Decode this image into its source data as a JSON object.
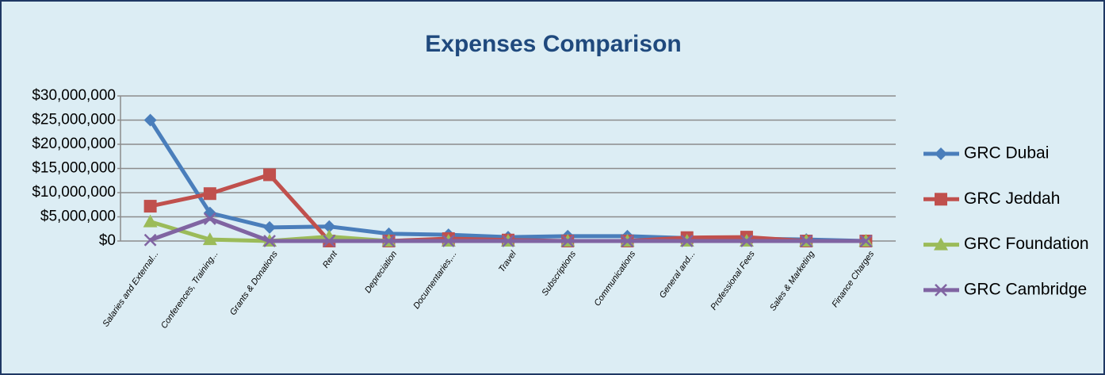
{
  "chart_data": {
    "type": "line",
    "title": "Expenses Comparison",
    "categories": [
      "Salaries and External...",
      "Conferences, Training...",
      "Grants & Donations",
      "Rent",
      "Depreciation",
      "Documentaries,...",
      "Travel",
      "Subscriptions",
      "Communications",
      "General and...",
      "Professional Fees",
      "Sales & Marketing",
      "Finance Charges"
    ],
    "series": [
      {
        "name": "GRC Dubai",
        "color": "#4a7ebb",
        "marker": "diamond",
        "values": [
          25000000,
          5800000,
          2800000,
          3000000,
          1500000,
          1300000,
          800000,
          1000000,
          1000000,
          600000,
          500000,
          300000,
          0
        ]
      },
      {
        "name": "GRC Jeddah",
        "color": "#c0504d",
        "marker": "square",
        "values": [
          7200000,
          9800000,
          13700000,
          0,
          0,
          500000,
          200000,
          0,
          0,
          700000,
          800000,
          0,
          0
        ]
      },
      {
        "name": "GRC Foundation",
        "color": "#9bbb59",
        "marker": "triangle",
        "values": [
          4000000,
          300000,
          0,
          900000,
          0,
          0,
          0,
          0,
          0,
          0,
          0,
          0,
          0
        ]
      },
      {
        "name": "GRC Cambridge",
        "color": "#8064a2",
        "marker": "x",
        "values": [
          200000,
          4600000,
          0,
          0,
          0,
          0,
          0,
          0,
          0,
          0,
          0,
          0,
          0
        ]
      }
    ],
    "ylim": [
      0,
      30000000
    ],
    "yticks": [
      {
        "value": 0,
        "label": "$0"
      },
      {
        "value": 5000000,
        "label": "$5,000,000"
      },
      {
        "value": 10000000,
        "label": "$10,000,000"
      },
      {
        "value": 15000000,
        "label": "$15,000,000"
      },
      {
        "value": 20000000,
        "label": "$20,000,000"
      },
      {
        "value": 25000000,
        "label": "$25,000,000"
      },
      {
        "value": 30000000,
        "label": "$30,000,000"
      }
    ],
    "grid": true,
    "legend": "right"
  }
}
